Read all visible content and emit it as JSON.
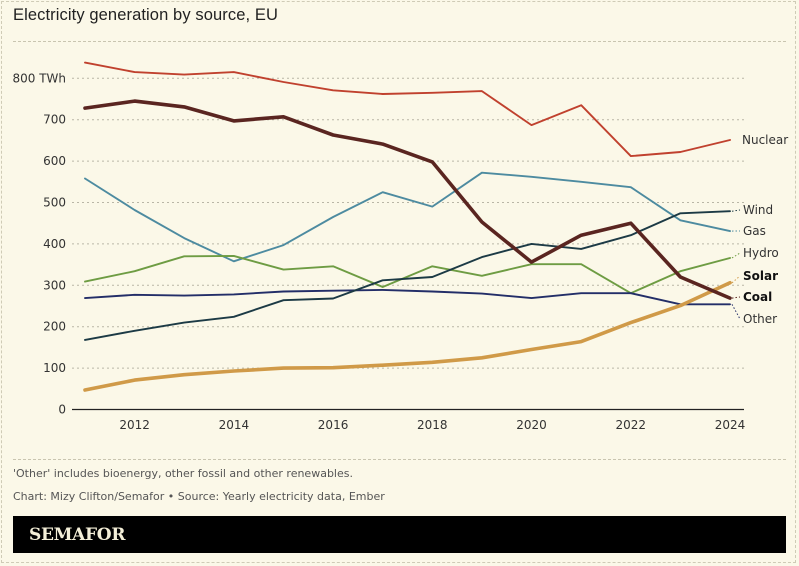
{
  "chart_data": {
    "type": "line",
    "title": "Electricity generation by source, EU",
    "xlabel": "",
    "ylabel": "TWh",
    "y_unit_suffix": " TWh",
    "ylim": [
      0,
      850
    ],
    "xlim": [
      2011,
      2024
    ],
    "grid": true,
    "legend": "direct-labels-right",
    "y_ticks": [
      0,
      100,
      200,
      300,
      400,
      500,
      600,
      700,
      800
    ],
    "y_tick_labels": [
      "0",
      "100",
      "200",
      "300",
      "400",
      "500",
      "600",
      "700",
      "800 TWh"
    ],
    "x_ticks": [
      2012,
      2014,
      2016,
      2018,
      2020,
      2022,
      2024
    ],
    "x_tick_labels": [
      "2012",
      "2014",
      "2016",
      "2018",
      "2020",
      "2022",
      "2024"
    ],
    "x": [
      2011,
      2012,
      2013,
      2014,
      2015,
      2016,
      2017,
      2018,
      2019,
      2020,
      2021,
      2022,
      2023,
      2024
    ],
    "series": [
      {
        "name": "Nuclear",
        "color": "#c0412e",
        "bold": false,
        "values": [
          838,
          815,
          809,
          815,
          791,
          771,
          762,
          765,
          769,
          687,
          735,
          612,
          622,
          651
        ]
      },
      {
        "name": "Wind",
        "color": "#1c3a45",
        "bold": false,
        "values": [
          168,
          190,
          210,
          224,
          264,
          268,
          312,
          320,
          368,
          400,
          388,
          421,
          474,
          479
        ]
      },
      {
        "name": "Gas",
        "color": "#4d8ba0",
        "bold": false,
        "values": [
          558,
          482,
          414,
          358,
          397,
          465,
          525,
          490,
          572,
          562,
          550,
          537,
          457,
          431
        ]
      },
      {
        "name": "Hydro",
        "color": "#6e9c43",
        "bold": false,
        "values": [
          309,
          334,
          370,
          371,
          338,
          346,
          296,
          346,
          323,
          351,
          351,
          281,
          334,
          366
        ]
      },
      {
        "name": "Solar",
        "color": "#d09a48",
        "bold": true,
        "values": [
          47,
          71,
          84,
          93,
          100,
          101,
          107,
          114,
          125,
          145,
          164,
          210,
          251,
          306
        ]
      },
      {
        "name": "Coal",
        "color": "#5a2520",
        "bold": true,
        "values": [
          728,
          745,
          731,
          697,
          707,
          663,
          641,
          598,
          453,
          356,
          421,
          450,
          320,
          269
        ]
      },
      {
        "name": "Other",
        "color": "#232e68",
        "bold": false,
        "values": [
          269,
          277,
          275,
          278,
          285,
          287,
          289,
          285,
          280,
          269,
          281,
          281,
          254,
          254
        ]
      }
    ]
  },
  "note": "'Other' includes bioenergy, other fossil and other renewables.",
  "credit": "Chart: Mizy Clifton/Semafor • Source: Yearly electricity data, Ember",
  "brand": "SEMAFOR"
}
